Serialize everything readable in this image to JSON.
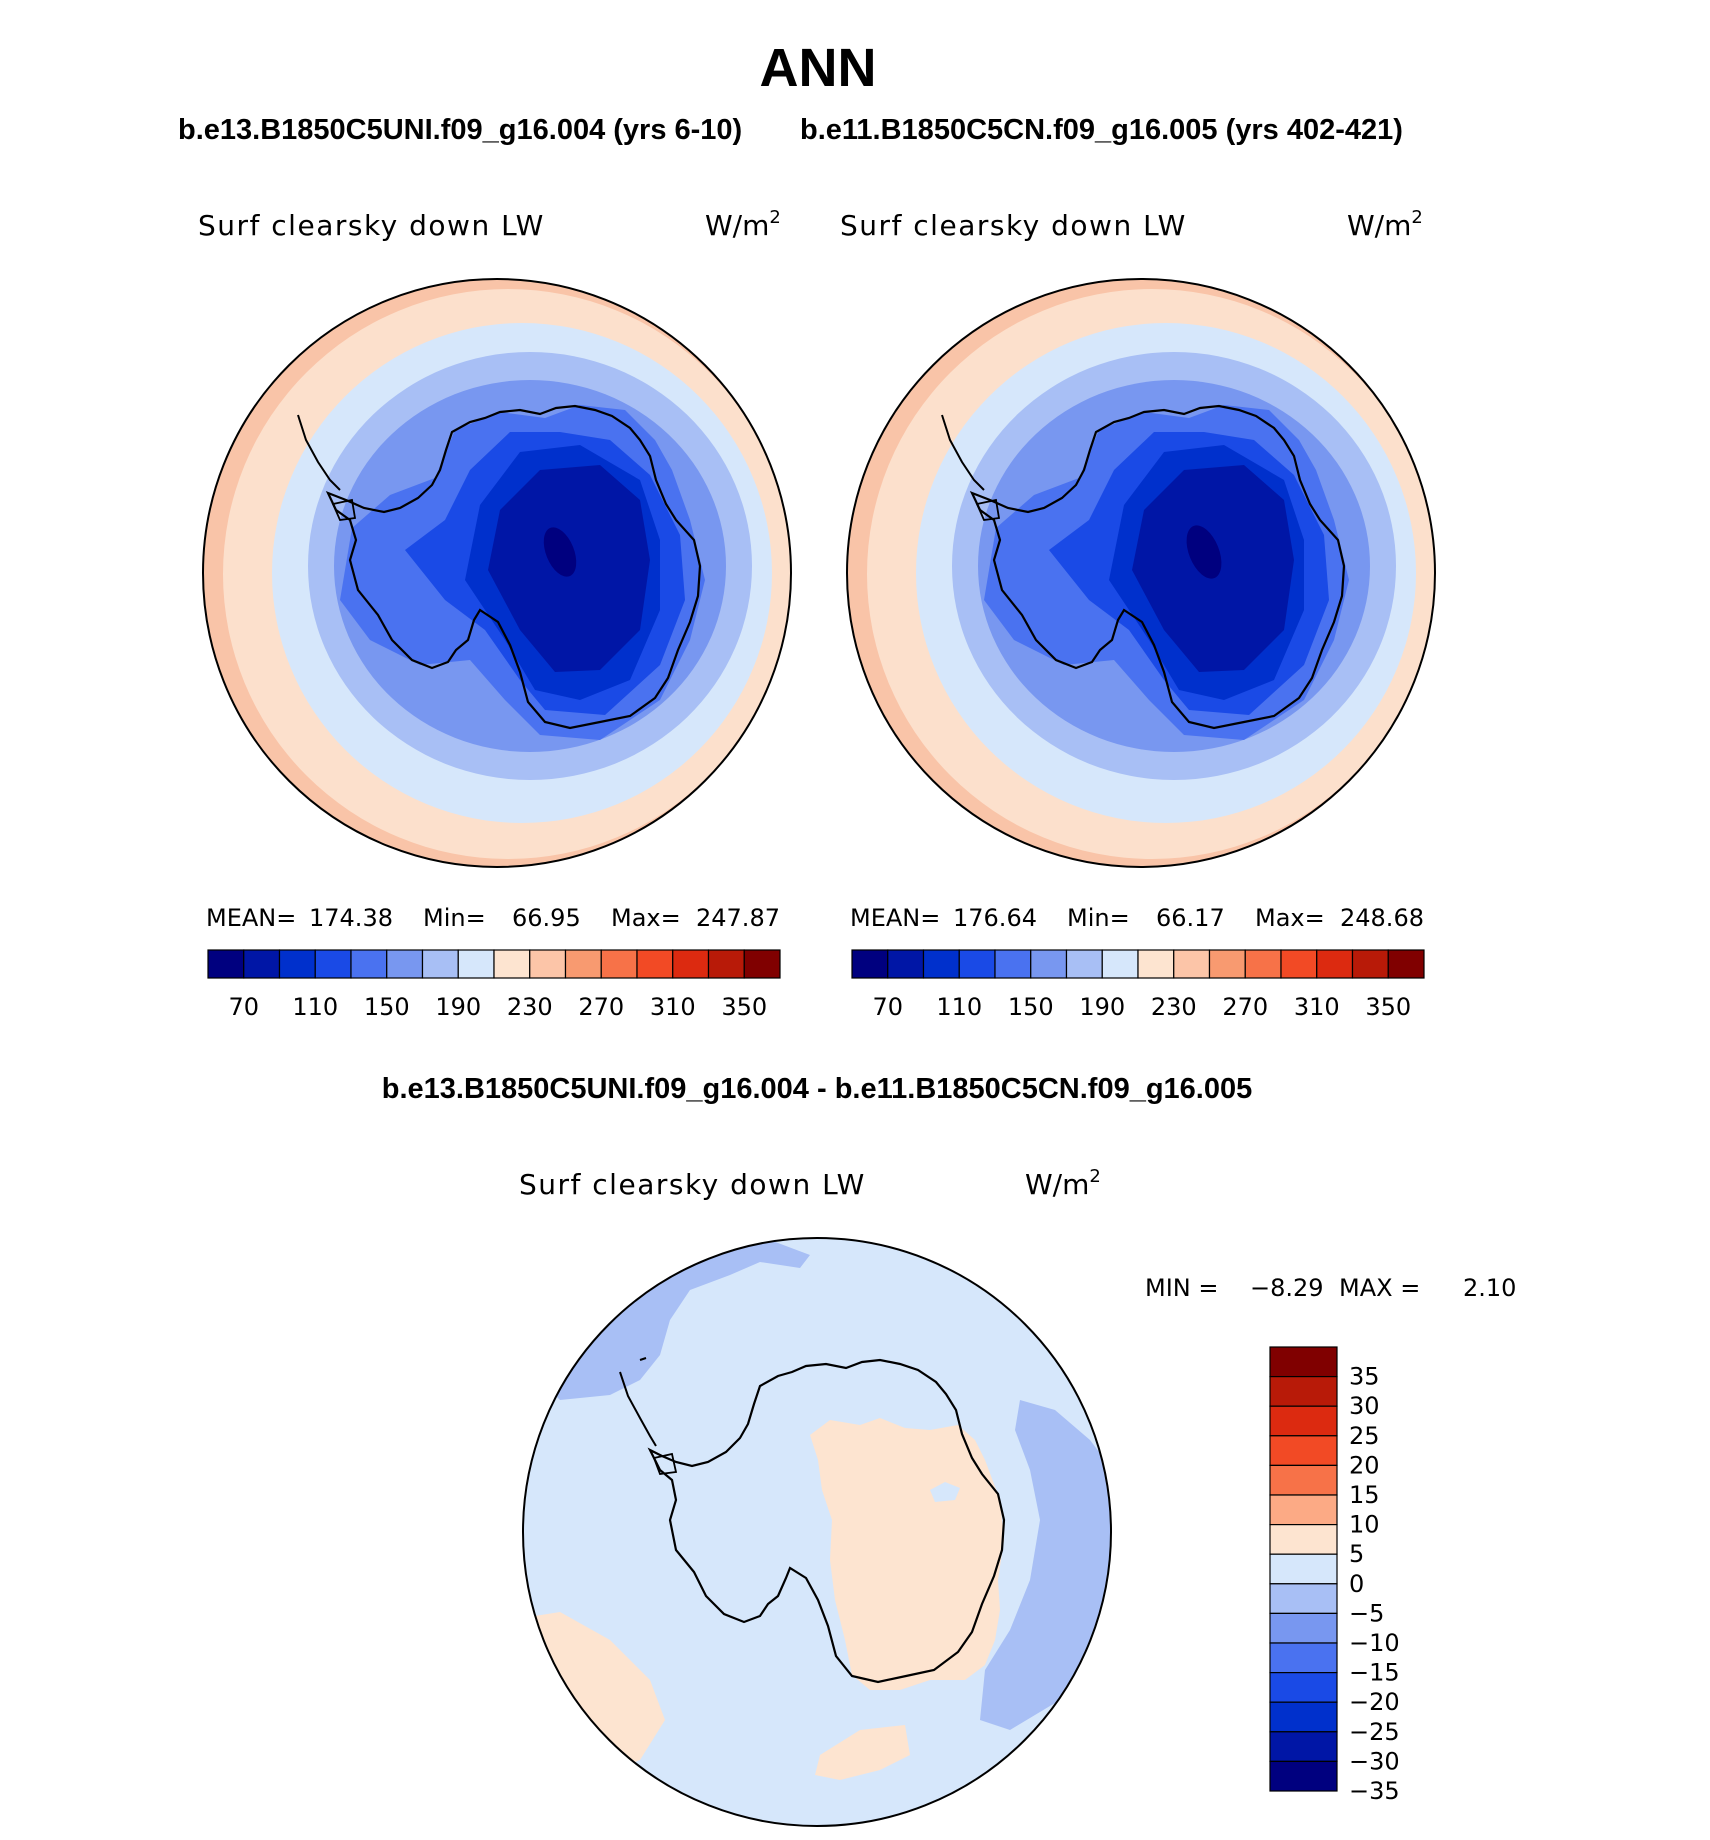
{
  "page": {
    "season": "ANN"
  },
  "panels": [
    {
      "case_title": "b.e13.B1850C5UNI.f09_g16.004 (yrs 6-10)",
      "variable": "Surf clearsky down LW",
      "units": "W/m",
      "units_exp": "2",
      "stats": {
        "mean_label": "MEAN=",
        "mean": "174.38",
        "min_label": "Min=",
        "min": "66.95",
        "max_label": "Max=",
        "max": "247.87"
      }
    },
    {
      "case_title": "b.e11.B1850C5CN.f09_g16.005 (yrs 402-421)",
      "variable": "Surf clearsky down LW",
      "units": "W/m",
      "units_exp": "2",
      "stats": {
        "mean_label": "MEAN=",
        "mean": "176.64",
        "min_label": "Min=",
        "min": "66.17",
        "max_label": "Max=",
        "max": "248.68"
      }
    }
  ],
  "abs_colorbar": {
    "colors": [
      "#00007f",
      "#0016a6",
      "#0030cc",
      "#1a4ae6",
      "#4a72f0",
      "#7897f0",
      "#a8bff5",
      "#d6e7fb",
      "#fde4d0",
      "#fcc5a8",
      "#f89a70",
      "#f77248",
      "#f24a25",
      "#dc2a10",
      "#b81a08",
      "#800000"
    ],
    "tick_labels": [
      "70",
      "110",
      "150",
      "190",
      "230",
      "270",
      "310",
      "350"
    ]
  },
  "diff_panel": {
    "title": "b.e13.B1850C5UNI.f09_g16.004 - b.e11.B1850C5CN.f09_g16.005",
    "variable": "Surf clearsky down LW",
    "units": "W/m",
    "units_exp": "2",
    "stats": {
      "min_label": "MIN =",
      "min": "−8.29",
      "max_label": "MAX =",
      "max": "2.10"
    }
  },
  "diff_colorbar": {
    "colors_top_to_bottom": [
      "#800000",
      "#b81a08",
      "#dc2a10",
      "#f24a25",
      "#f77248",
      "#fcaa85",
      "#fde4d0",
      "#d6e7fb",
      "#a8bff5",
      "#7897f0",
      "#4a72f0",
      "#1a4ae6",
      "#0030cc",
      "#0016a6",
      "#00007f"
    ],
    "tick_labels": [
      "35",
      "30",
      "25",
      "20",
      "15",
      "10",
      "5",
      "0",
      "−5",
      "−10",
      "−15",
      "−20",
      "−25",
      "−30",
      "−35"
    ]
  }
}
